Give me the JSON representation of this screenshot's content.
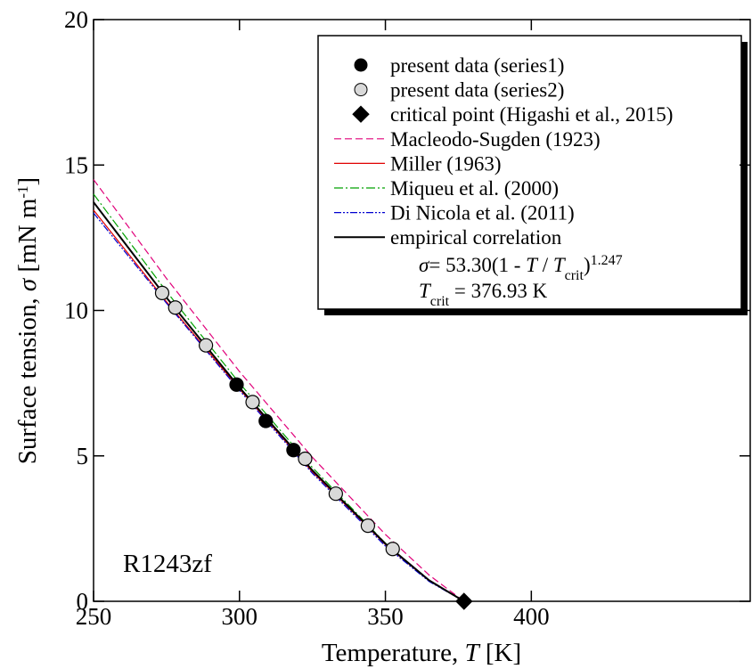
{
  "chart_data": {
    "type": "scatter",
    "xlabel": [
      "Temperature, ",
      "T",
      "  [K]"
    ],
    "ylabel": [
      "Surface tension, ",
      "σ",
      " [mN m",
      "-1",
      "]"
    ],
    "annotation": "R1243zf",
    "formula": [
      "σ",
      "= 53.30(1 - ",
      "T",
      " / ",
      "T",
      "crit",
      ")",
      "1.247"
    ],
    "tcrit": [
      "T",
      "crit",
      " = 376.93 K"
    ],
    "xlim": [
      250,
      475
    ],
    "ylim": [
      0,
      20
    ],
    "xticks": [
      250,
      300,
      350,
      400
    ],
    "yticks": [
      0,
      5,
      10,
      15,
      20
    ],
    "series": [
      {
        "name": "present data (series1)",
        "marker": "circle",
        "color": "#000000",
        "x": [
          299,
          309,
          318.5
        ],
        "values": [
          7.45,
          6.2,
          5.2
        ]
      },
      {
        "name": "present data (series2)",
        "marker": "circle",
        "color": "#d9d9d9",
        "x": [
          273.5,
          278,
          288.5,
          304.5,
          322.5,
          333,
          344,
          352.5
        ],
        "values": [
          10.6,
          10.1,
          8.8,
          6.85,
          4.9,
          3.7,
          2.6,
          1.8
        ]
      },
      {
        "name": "critical point (Higashi et al., 2015)",
        "marker": "diamond",
        "color": "#000000",
        "x": [
          376.93
        ],
        "values": [
          0
        ]
      },
      {
        "name": "Macleodo-Sugden (1923)",
        "line": "dashed",
        "color": "#e0007a",
        "x": [
          250,
          275,
          300,
          325,
          350,
          365,
          376.93
        ],
        "values": [
          14.5,
          11.1,
          7.9,
          4.95,
          2.3,
          0.9,
          0
        ]
      },
      {
        "name": "Miller (1963)",
        "line": "solid",
        "color": "#e00000",
        "x": [
          250,
          275,
          300,
          325,
          350,
          365,
          376.93
        ],
        "values": [
          13.45,
          10.3,
          7.3,
          4.45,
          1.95,
          0.7,
          0
        ]
      },
      {
        "name": "Miqueu et al. (2000)",
        "line": "dashdot",
        "color": "#00a000",
        "x": [
          250,
          275,
          300,
          325,
          350,
          365,
          376.93
        ],
        "values": [
          14.0,
          10.65,
          7.5,
          4.6,
          2.0,
          0.7,
          0
        ]
      },
      {
        "name": "Di Nicola et al. (2011)",
        "line": "dashdotdot",
        "color": "#0000d0",
        "x": [
          250,
          275,
          300,
          325,
          350,
          365,
          376.93
        ],
        "values": [
          13.35,
          10.25,
          7.25,
          4.4,
          1.9,
          0.68,
          0
        ]
      },
      {
        "name": "empirical correlation",
        "line": "solid",
        "color": "#000000",
        "x": [
          250,
          275,
          300,
          325,
          350,
          365,
          376.93
        ],
        "values": [
          13.72,
          10.44,
          7.35,
          4.5,
          1.98,
          0.72,
          0
        ]
      }
    ]
  }
}
